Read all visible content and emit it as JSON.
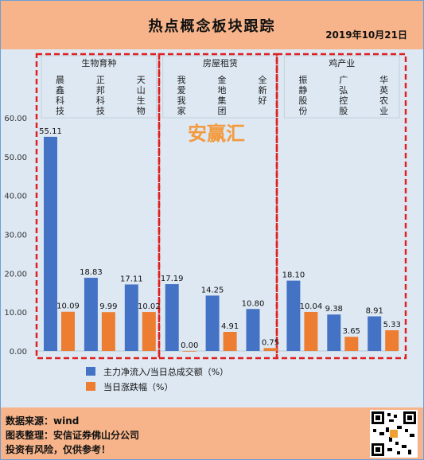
{
  "header": {
    "title": "热点概念板块跟踪",
    "date": "2019年10月21日"
  },
  "watermark": "安赢汇",
  "footer": {
    "line1": "数据来源：wind",
    "line2": "图表整理：安信证券佛山分公司",
    "line3": "投资有风险，仅供参考！"
  },
  "colors": {
    "series1": "#4472c4",
    "series2": "#ed7d31",
    "header_bg": "#f7b48a",
    "plot_bg": "#dde8f3",
    "group_border": "#e02020",
    "watermark": "#f39a3d"
  },
  "chart_data": {
    "type": "bar",
    "groups": [
      {
        "name": "生物育种",
        "stocks": [
          "晨鑫科技",
          "正邦科技",
          "天山生物"
        ]
      },
      {
        "name": "房屋租赁",
        "stocks": [
          "我爱我家",
          "金地集团",
          "全新好"
        ]
      },
      {
        "name": "鸡产业",
        "stocks": [
          "振静股份",
          "广弘控股",
          "华英农业"
        ]
      }
    ],
    "categories": [
      "晨鑫科技",
      "正邦科技",
      "天山生物",
      "我爱我家",
      "金地集团",
      "全新好",
      "振静股份",
      "广弘控股",
      "华英农业"
    ],
    "series": [
      {
        "name": "主力净流入/当日总成交额（%）",
        "values": [
          55.11,
          18.83,
          17.11,
          17.19,
          14.25,
          10.8,
          18.1,
          9.38,
          8.91
        ],
        "labels": [
          "55.11",
          "18.83",
          "17.11",
          "17.19",
          "14.25",
          "10.80",
          "18.10",
          "9.38",
          "8.91"
        ]
      },
      {
        "name": "当日涨跌幅（%）",
        "values": [
          10.09,
          9.99,
          10.02,
          0.0,
          4.91,
          0.75,
          10.04,
          3.65,
          5.33
        ],
        "labels": [
          "10.09",
          "9.99",
          "10.02",
          "0.00",
          "4.91",
          "0.75",
          "10.04",
          "3.65",
          "5.33"
        ]
      }
    ],
    "ylim": [
      0,
      60
    ],
    "yticks": [
      "0.00",
      "10.00",
      "20.00",
      "30.00",
      "40.00",
      "50.00",
      "60.00"
    ],
    "grid": false,
    "legend_position": "bottom"
  }
}
